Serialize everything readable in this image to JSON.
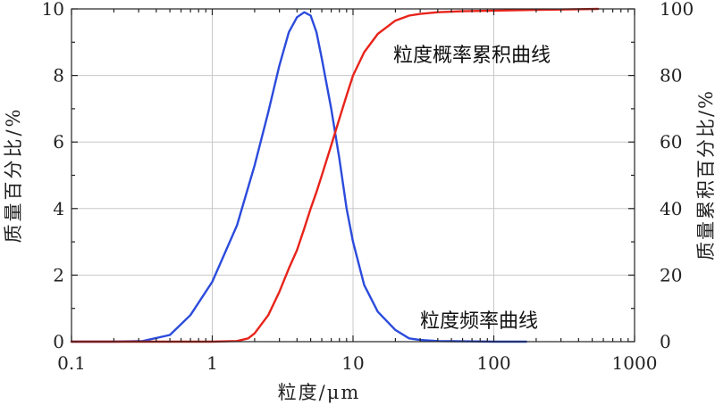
{
  "chart_data": {
    "type": "line",
    "xscale": "log",
    "xlabel": "粒度/μm",
    "ylabel_left": "质量百分比/%",
    "ylabel_right": "质量累积百分比/%",
    "xlim": [
      0.1,
      1000
    ],
    "ylim_left": [
      0,
      10
    ],
    "ylim_right": [
      0,
      100
    ],
    "x_ticks": [
      "0.1",
      "1",
      "10",
      "100",
      "1000"
    ],
    "y_left_ticks": [
      "0",
      "2",
      "4",
      "6",
      "8",
      "10"
    ],
    "y_right_ticks": [
      "0",
      "20",
      "40",
      "60",
      "80",
      "100"
    ],
    "grid": true,
    "series": [
      {
        "name": "粒度频率曲线",
        "axis": "left",
        "color": "#2b4bdc",
        "x": [
          0.1,
          0.2,
          0.32,
          0.5,
          0.7,
          1.0,
          1.5,
          2.0,
          2.5,
          3.0,
          3.5,
          4.0,
          4.5,
          5.0,
          5.5,
          6.0,
          7.0,
          8.0,
          9.0,
          10.0,
          12.0,
          15.0,
          20.0,
          25.0,
          30.0,
          40.0,
          60.0,
          100.0,
          170.0
        ],
        "y": [
          0,
          0,
          0.02,
          0.2,
          0.8,
          1.8,
          3.5,
          5.3,
          6.9,
          8.3,
          9.3,
          9.75,
          9.9,
          9.8,
          9.3,
          8.5,
          7.0,
          5.5,
          4.0,
          3.0,
          1.7,
          0.9,
          0.35,
          0.1,
          0.05,
          0.02,
          0.01,
          0,
          0
        ]
      },
      {
        "name": "粒度概率累积曲线",
        "axis": "right",
        "color": "#e8231b",
        "x": [
          0.1,
          0.5,
          1.0,
          1.5,
          1.8,
          2.0,
          2.5,
          3.0,
          3.5,
          4.0,
          4.5,
          5.0,
          5.5,
          6.0,
          7.0,
          8.0,
          9.0,
          10.0,
          12.0,
          15.0,
          20.0,
          25.0,
          30.0,
          40.0,
          60.0,
          100.0,
          200.0,
          300.0,
          550.0
        ],
        "y": [
          0,
          0,
          0,
          0.2,
          1.0,
          2.5,
          8.0,
          15.0,
          22.0,
          27.5,
          34.0,
          40.0,
          45.0,
          50.0,
          59.0,
          67.0,
          74.0,
          80.0,
          87.0,
          92.5,
          96.5,
          98.0,
          98.5,
          99.0,
          99.3,
          99.5,
          99.7,
          99.8,
          100.0
        ]
      }
    ],
    "annotations": [
      {
        "text": "粒度概率累积曲线"
      },
      {
        "text": "粒度频率曲线"
      }
    ]
  }
}
